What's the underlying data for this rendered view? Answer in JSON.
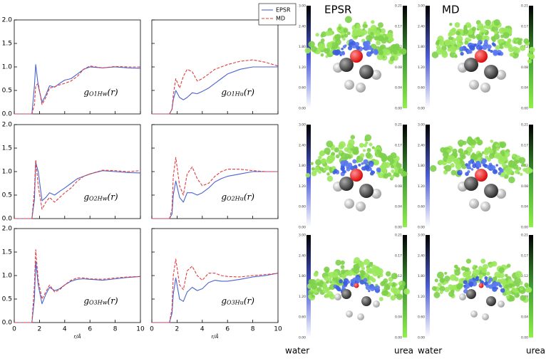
{
  "chart_data": [
    {
      "type": "line",
      "annotation": [
        "g",
        "O1Hw",
        "(r)"
      ],
      "xlim": [
        0,
        10
      ],
      "xticks": [
        0,
        2,
        4,
        6,
        8,
        10
      ],
      "ylim": [
        0,
        2
      ],
      "yticks": [
        {
          "value": 0,
          "label": "0.0"
        },
        {
          "value": 0.5,
          "label": "0.5"
        },
        {
          "value": 1,
          "label": "1.0"
        },
        {
          "value": 1.5,
          "label": "1.5"
        },
        {
          "value": 2,
          "label": "2.0"
        }
      ],
      "x": [
        0,
        1.4,
        1.6,
        1.7,
        1.9,
        2.2,
        2.5,
        2.8,
        3.2,
        3.6,
        4,
        4.5,
        5,
        5.5,
        6,
        7,
        8,
        9,
        10
      ],
      "series": [
        {
          "color": "#4a63d0",
          "values": [
            0,
            0,
            0.6,
            1.05,
            0.6,
            0.25,
            0.4,
            0.6,
            0.57,
            0.65,
            0.72,
            0.75,
            0.85,
            0.95,
            1.0,
            0.98,
            1.0,
            0.98,
            0.97
          ]
        },
        {
          "color": "#e03c3c",
          "values": [
            0,
            0,
            0.2,
            0.6,
            0.65,
            0.2,
            0.35,
            0.55,
            0.58,
            0.62,
            0.65,
            0.7,
            0.8,
            0.95,
            1.02,
            0.98,
            1.01,
            1.0,
            1.0
          ]
        }
      ]
    },
    {
      "type": "line",
      "annotation": [
        "g",
        "O1Hu",
        "(r)"
      ],
      "xlim": [
        0,
        10
      ],
      "xticks": [
        0,
        2,
        4,
        6,
        8,
        10
      ],
      "ylim": [
        0,
        2
      ],
      "yticks": [
        0,
        0.5,
        1,
        1.5,
        2
      ],
      "x": [
        0,
        1.4,
        1.6,
        1.7,
        1.9,
        2.2,
        2.5,
        2.8,
        3.2,
        3.6,
        4,
        4.5,
        5,
        5.5,
        6,
        7,
        8,
        9,
        10
      ],
      "series": [
        {
          "name": "EPSR",
          "color": "#4a63d0",
          "values": [
            0,
            0,
            0.1,
            0.3,
            0.5,
            0.35,
            0.3,
            0.35,
            0.45,
            0.43,
            0.48,
            0.55,
            0.65,
            0.75,
            0.85,
            0.95,
            1.0,
            1.0,
            1.0
          ]
        },
        {
          "name": "MD",
          "color": "#e03c3c",
          "values": [
            0,
            0,
            0.1,
            0.4,
            0.75,
            0.55,
            0.8,
            0.95,
            0.9,
            0.7,
            0.75,
            0.85,
            0.95,
            1.0,
            1.05,
            1.12,
            1.15,
            1.1,
            1.02
          ]
        }
      ]
    },
    {
      "type": "line",
      "annotation": [
        "g",
        "O2Hw",
        "(r)"
      ],
      "xlim": [
        0,
        10
      ],
      "xticks": [
        0,
        2,
        4,
        6,
        8,
        10
      ],
      "ylim": [
        0,
        2
      ],
      "yticks": [
        {
          "value": 0,
          "label": "0.0"
        },
        {
          "value": 0.5,
          "label": "0.5"
        },
        {
          "value": 1,
          "label": "1.0"
        },
        {
          "value": 1.5,
          "label": "1.5"
        },
        {
          "value": 2,
          "label": "2.0"
        }
      ],
      "x": [
        0,
        1.4,
        1.6,
        1.7,
        1.9,
        2.2,
        2.5,
        2.8,
        3.2,
        3.6,
        4,
        4.5,
        5,
        5.5,
        6,
        7,
        8,
        9,
        10
      ],
      "series": [
        {
          "color": "#4a63d0",
          "values": [
            0,
            0,
            0.4,
            1.2,
            1.0,
            0.38,
            0.45,
            0.55,
            0.5,
            0.58,
            0.65,
            0.75,
            0.85,
            0.9,
            0.95,
            1.02,
            1.0,
            0.98,
            0.97
          ]
        },
        {
          "color": "#e03c3c",
          "values": [
            0,
            0,
            0.6,
            1.25,
            0.7,
            0.2,
            0.35,
            0.45,
            0.35,
            0.45,
            0.55,
            0.65,
            0.8,
            0.9,
            0.95,
            1.03,
            1.02,
            1.0,
            1.02
          ]
        }
      ]
    },
    {
      "type": "line",
      "annotation": [
        "g",
        "O2Hu",
        "(r)"
      ],
      "xlim": [
        0,
        10
      ],
      "xticks": [
        0,
        2,
        4,
        6,
        8,
        10
      ],
      "ylim": [
        0,
        2
      ],
      "yticks": [
        0,
        0.5,
        1,
        1.5,
        2
      ],
      "x": [
        0,
        1.4,
        1.6,
        1.7,
        1.9,
        2.2,
        2.5,
        2.8,
        3.2,
        3.6,
        4,
        4.5,
        5,
        5.5,
        6,
        7,
        8,
        9,
        10
      ],
      "series": [
        {
          "color": "#4a63d0",
          "values": [
            0,
            0,
            0.1,
            0.5,
            0.8,
            0.45,
            0.35,
            0.55,
            0.55,
            0.5,
            0.55,
            0.65,
            0.78,
            0.85,
            0.9,
            0.95,
            1.0,
            1.0,
            1.0
          ]
        },
        {
          "color": "#e03c3c",
          "values": [
            0,
            0,
            0.2,
            0.9,
            1.3,
            0.7,
            0.5,
            0.95,
            1.1,
            0.85,
            0.7,
            0.75,
            0.9,
            1.0,
            1.05,
            1.05,
            1.02,
            1.0,
            1.0
          ]
        }
      ]
    },
    {
      "type": "line",
      "annotation": [
        "g",
        "O3Hw",
        "(r)"
      ],
      "xlabel": "r/Å",
      "xlim": [
        0,
        10
      ],
      "xticks": [
        0,
        2,
        4,
        6,
        8,
        10
      ],
      "ylim": [
        0,
        2
      ],
      "yticks": [
        {
          "value": 0,
          "label": "0.0"
        },
        {
          "value": 0.5,
          "label": "0.5"
        },
        {
          "value": 1,
          "label": "1.0"
        },
        {
          "value": 1.5,
          "label": "1.5"
        },
        {
          "value": 2,
          "label": "2.0"
        }
      ],
      "x": [
        0,
        1.4,
        1.6,
        1.7,
        1.9,
        2.2,
        2.5,
        2.8,
        3.2,
        3.6,
        4,
        4.5,
        5,
        5.5,
        6,
        7,
        8,
        9,
        10
      ],
      "series": [
        {
          "color": "#4a63d0",
          "values": [
            0,
            0,
            0.5,
            1.3,
            0.8,
            0.4,
            0.6,
            0.75,
            0.68,
            0.72,
            0.8,
            0.88,
            0.92,
            0.93,
            0.92,
            0.9,
            0.93,
            0.96,
            0.98
          ]
        },
        {
          "color": "#e03c3c",
          "values": [
            0,
            0,
            0.8,
            1.55,
            0.9,
            0.5,
            0.65,
            0.8,
            0.65,
            0.7,
            0.8,
            0.9,
            0.95,
            0.95,
            0.93,
            0.92,
            0.95,
            0.97,
            0.98
          ]
        }
      ]
    },
    {
      "type": "line",
      "annotation": [
        "g",
        "O3Hu",
        "(r)"
      ],
      "xlabel": "r/Å",
      "xlim": [
        0,
        10
      ],
      "xticks": [
        0,
        2,
        4,
        6,
        8,
        10
      ],
      "ylim": [
        0,
        2
      ],
      "yticks": [
        0,
        0.5,
        1,
        1.5,
        2
      ],
      "x": [
        0,
        1.4,
        1.6,
        1.7,
        1.9,
        2.2,
        2.5,
        2.8,
        3.2,
        3.6,
        4,
        4.5,
        5,
        5.5,
        6,
        7,
        8,
        9,
        10
      ],
      "series": [
        {
          "color": "#4a63d0",
          "values": [
            0,
            0,
            0.2,
            0.6,
            0.95,
            0.5,
            0.45,
            0.65,
            0.75,
            0.68,
            0.72,
            0.85,
            0.9,
            0.88,
            0.88,
            0.92,
            0.97,
            1.0,
            1.05
          ]
        },
        {
          "color": "#e03c3c",
          "values": [
            0,
            0,
            0.3,
            1.0,
            1.35,
            0.8,
            0.7,
            1.1,
            1.2,
            1.0,
            0.9,
            1.05,
            1.05,
            1.0,
            0.98,
            0.97,
            1.0,
            1.02,
            1.05
          ]
        }
      ]
    }
  ],
  "sdf": {
    "headers": [
      "EPSR",
      "MD"
    ],
    "water": {
      "label": "water",
      "ticks": [
        "0.00",
        "0.60",
        "1.20",
        "1.80",
        "2.40",
        "3.00"
      ]
    },
    "urea": {
      "label": "urea",
      "ticks": [
        "0.00",
        "0.04",
        "0.08",
        "0.12",
        "0.17",
        "0.21"
      ]
    }
  }
}
